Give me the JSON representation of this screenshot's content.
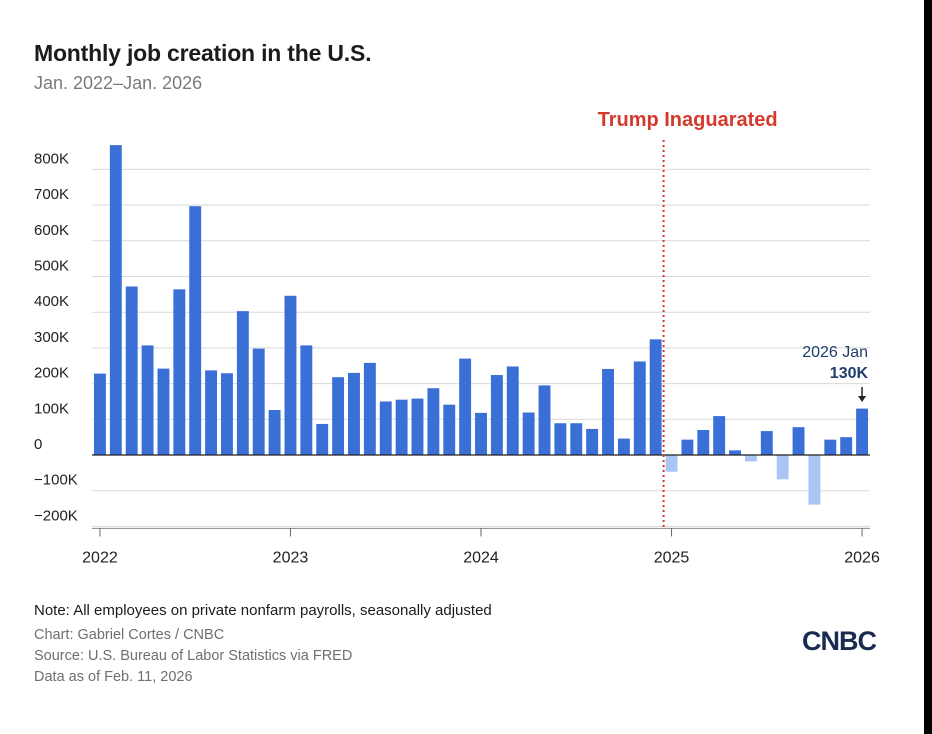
{
  "title": "Monthly job creation in the U.S.",
  "subtitle": "Jan. 2022–Jan. 2026",
  "note": "Note: All employees on private nonfarm payrolls, seasonally adjusted",
  "credit": "Chart: Gabriel Cortes / CNBC",
  "source": "Source: U.S. Bureau of Labor Statistics via FRED",
  "data_as_of": "Data as of Feb. 11, 2026",
  "logo_text": "CNBC",
  "colors": {
    "positive_bar": "#3a6fd8",
    "negative_bar": "#a9c5f3",
    "marker_line": "#d33a2c",
    "gridline": "#d9d9d9",
    "label_navy": "#1f3d6b"
  },
  "chart_data": {
    "type": "bar",
    "title": "Monthly job creation in the U.S.",
    "subtitle": "Jan. 2022–Jan. 2026",
    "xlabel": "",
    "ylabel": "",
    "ylim": [
      -200,
      850
    ],
    "y_ticks": [
      800,
      700,
      600,
      500,
      400,
      300,
      200,
      100,
      0,
      -100,
      -200
    ],
    "y_tick_labels": [
      "800K",
      "700K",
      "600K",
      "500K",
      "400K",
      "300K",
      "200K",
      "100K",
      "0",
      "−100K",
      "−200K"
    ],
    "x_ticks": [
      "2022",
      "2023",
      "2024",
      "2025",
      "2026"
    ],
    "grid": true,
    "legend": "none",
    "categories": [
      "2022-01",
      "2022-02",
      "2022-03",
      "2022-04",
      "2022-05",
      "2022-06",
      "2022-07",
      "2022-08",
      "2022-09",
      "2022-10",
      "2022-11",
      "2022-12",
      "2023-01",
      "2023-02",
      "2023-03",
      "2023-04",
      "2023-05",
      "2023-06",
      "2023-07",
      "2023-08",
      "2023-09",
      "2023-10",
      "2023-11",
      "2023-12",
      "2024-01",
      "2024-02",
      "2024-03",
      "2024-04",
      "2024-05",
      "2024-06",
      "2024-07",
      "2024-08",
      "2024-09",
      "2024-10",
      "2024-11",
      "2024-12",
      "2025-01",
      "2025-02",
      "2025-03",
      "2025-04",
      "2025-05",
      "2025-06",
      "2025-07",
      "2025-08",
      "2025-09",
      "2025-10",
      "2025-11",
      "2025-12",
      "2026-01"
    ],
    "values": [
      228,
      868,
      472,
      307,
      242,
      464,
      697,
      237,
      229,
      403,
      298,
      126,
      446,
      307,
      87,
      218,
      230,
      258,
      150,
      155,
      158,
      187,
      141,
      270,
      118,
      224,
      248,
      119,
      195,
      89,
      89,
      73,
      241,
      46,
      262,
      324,
      -47,
      43,
      70,
      109,
      13,
      -18,
      67,
      -68,
      78,
      -139,
      43,
      50,
      130
    ],
    "annotations": [
      {
        "text": "Trump Inaguarated",
        "x": "2025-01",
        "type": "vertical-dotted-line"
      },
      {
        "text": "2026 Jan",
        "value_text": "130K",
        "x": "2026-01",
        "y": 130
      }
    ]
  }
}
